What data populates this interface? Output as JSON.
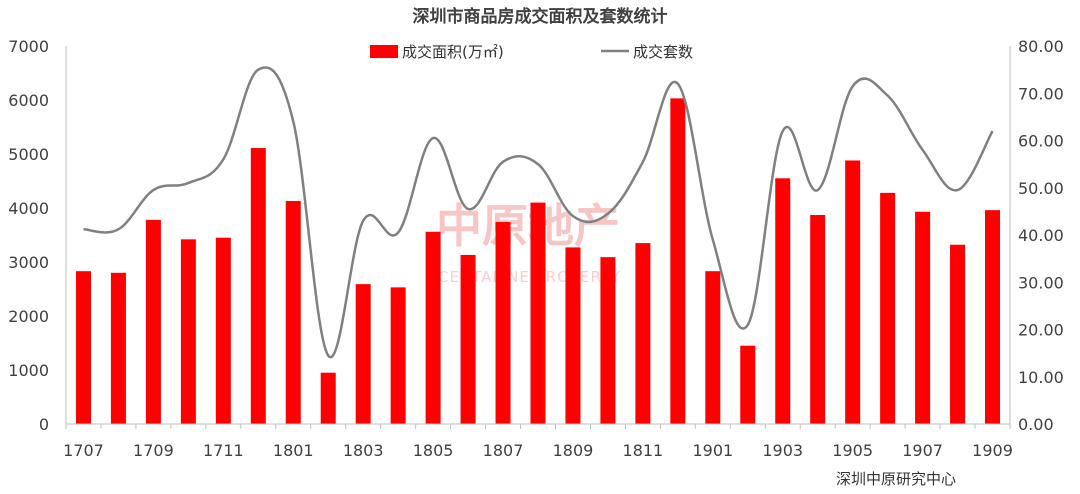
{
  "chart_data": {
    "type": "bar+line",
    "title": "深圳市商品房成交面积及套数统计",
    "categories": [
      "1707",
      "1708",
      "1709",
      "1710",
      "1711",
      "1712",
      "1801",
      "1802",
      "1803",
      "1804",
      "1805",
      "1806",
      "1807",
      "1808",
      "1809",
      "1810",
      "1811",
      "1812",
      "1901",
      "1902",
      "1903",
      "1904",
      "1905",
      "1906",
      "1907",
      "1908",
      "1909"
    ],
    "x_tick_labels": [
      "1707",
      "1709",
      "1711",
      "1801",
      "1803",
      "1805",
      "1807",
      "1809",
      "1811",
      "1901",
      "1903",
      "1905",
      "1907",
      "1909"
    ],
    "left_axis": {
      "ylim": [
        0,
        7000
      ],
      "ticks": [
        "0",
        "1000",
        "2000",
        "3000",
        "4000",
        "5000",
        "6000",
        "7000"
      ]
    },
    "right_axis": {
      "ylim": [
        0,
        80
      ],
      "ticks": [
        "0.00",
        "10.00",
        "20.00",
        "30.00",
        "40.00",
        "50.00",
        "60.00",
        "70.00",
        "80.00"
      ]
    },
    "series": [
      {
        "name": "成交面积(万㎡)",
        "kind": "bar",
        "axis": "left",
        "color": "#ff0000",
        "values": [
          2830,
          2800,
          3780,
          3420,
          3450,
          5110,
          4130,
          950,
          2590,
          2530,
          3560,
          3130,
          3740,
          4100,
          3270,
          3090,
          3350,
          6030,
          2830,
          1450,
          4550,
          3870,
          4880,
          4280,
          3930,
          3320,
          3960
        ]
      },
      {
        "name": "成交套数",
        "kind": "line",
        "axis": "right",
        "color": "#808080",
        "values": [
          41.2,
          41.2,
          49.5,
          51.0,
          56.0,
          75.0,
          64.0,
          14.5,
          43.0,
          40.5,
          60.5,
          45.5,
          55.5,
          55.0,
          44.0,
          44.5,
          55.5,
          72.0,
          39.0,
          21.0,
          62.0,
          49.5,
          71.5,
          69.5,
          58.0,
          49.5,
          62.0
        ]
      }
    ],
    "legend": {
      "placement": "top-center"
    },
    "grid": false
  },
  "watermark": {
    "cn": "中原地产",
    "en": "CENTALINE PROPERTY"
  },
  "source_note": "深圳中原研究中心"
}
